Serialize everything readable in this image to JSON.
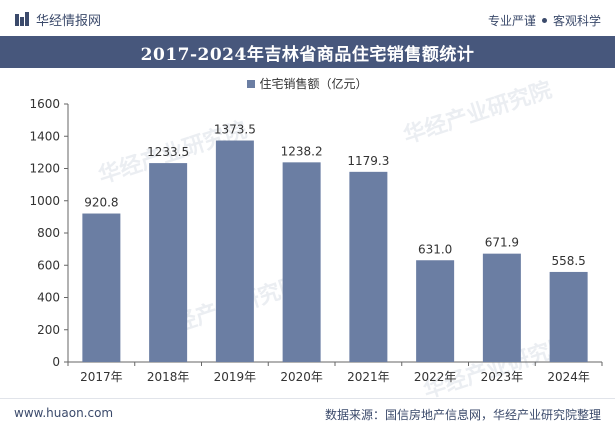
{
  "header": {
    "brand_name": "华经情报网",
    "slogan_left": "专业严谨",
    "slogan_right": "客观科学"
  },
  "footer": {
    "url": "www.huaon.com",
    "source": "数据来源：国信房地产信息网，华经产业研究院整理"
  },
  "watermark_text": "华经产业研究院",
  "colors": {
    "bar": "#6b7ea3",
    "title_band": "#47577c",
    "brand": "#3b4a6b"
  },
  "chart_data": {
    "type": "bar",
    "title": "2017-2024年吉林省商品住宅销售额统计",
    "legend_position": "top-center",
    "grid": false,
    "categories": [
      "2017年",
      "2018年",
      "2019年",
      "2020年",
      "2021年",
      "2022年",
      "2023年",
      "2024年"
    ],
    "series": [
      {
        "name": "住宅销售额（亿元）",
        "values": [
          920.8,
          1233.5,
          1373.5,
          1238.2,
          1179.3,
          631.0,
          671.9,
          558.5
        ],
        "labels": [
          "920.8",
          "1233.5",
          "1373.5",
          "1238.2",
          "1179.3",
          "631.0",
          "671.9",
          "558.5"
        ]
      }
    ],
    "ylim": [
      0,
      1600
    ],
    "yticks": [
      0,
      200,
      400,
      600,
      800,
      1000,
      1200,
      1400,
      1600
    ]
  }
}
